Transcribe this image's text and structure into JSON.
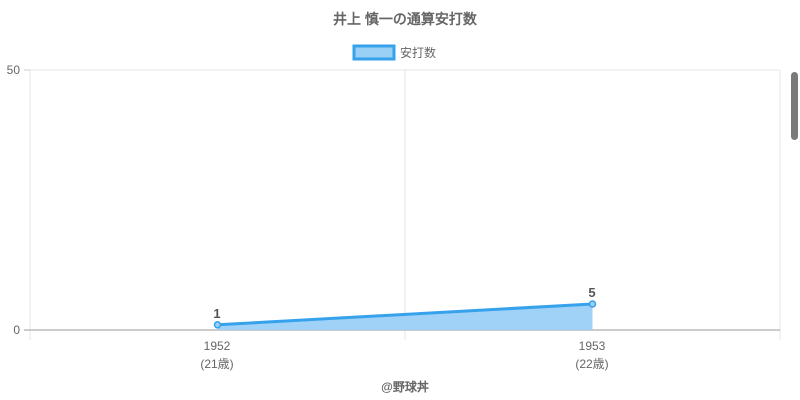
{
  "chart_data": {
    "type": "line",
    "title": "井上 慎一の通算安打数",
    "categories": [
      "1952",
      "1953"
    ],
    "category_sublabels": [
      "(21歳)",
      "(22歳)"
    ],
    "series": [
      {
        "name": "安打数",
        "values": [
          1,
          5
        ],
        "data_labels": [
          "1",
          "5"
        ],
        "fill": true
      }
    ],
    "ylim": [
      0,
      50
    ],
    "yticks": [
      "0",
      "50"
    ],
    "grid": true,
    "legend": "top",
    "colors": {
      "line": "#36a2eb",
      "fill": "#9ad0f5",
      "text": "#666666",
      "grid": "#e5e5e5"
    }
  },
  "credit": "@野球丼"
}
